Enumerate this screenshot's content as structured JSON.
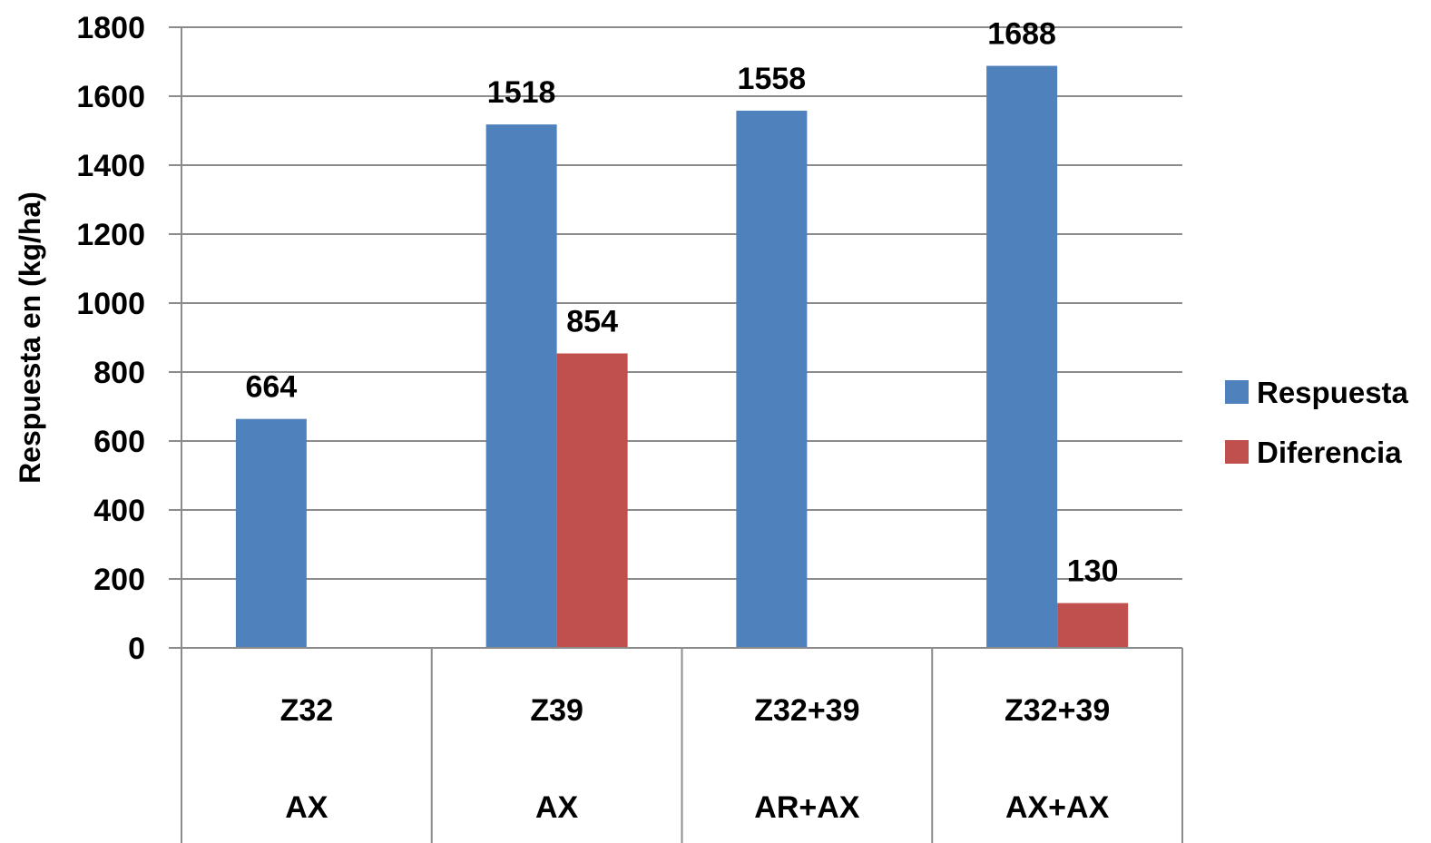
{
  "chart_data": {
    "type": "bar",
    "title": "",
    "ylabel": "Respuesta en (kg/ha)",
    "xlabel": "",
    "ylim": [
      0,
      1800
    ],
    "yticks": [
      0,
      200,
      400,
      600,
      800,
      1000,
      1200,
      1400,
      1600,
      1800
    ],
    "grid": true,
    "legend_position": "right",
    "categories": [
      {
        "row1": "Z32",
        "row2": "AX"
      },
      {
        "row1": "Z39",
        "row2": "AX"
      },
      {
        "row1": "Z32+39",
        "row2": "AR+AX"
      },
      {
        "row1": "Z32+39",
        "row2": "AX+AX"
      }
    ],
    "series": [
      {
        "name": "Respuesta",
        "color": "#4F81BD",
        "values": [
          664,
          1518,
          1558,
          1688
        ]
      },
      {
        "name": "Diferencia",
        "color": "#C0504D",
        "values": [
          null,
          854,
          null,
          130
        ]
      }
    ]
  }
}
